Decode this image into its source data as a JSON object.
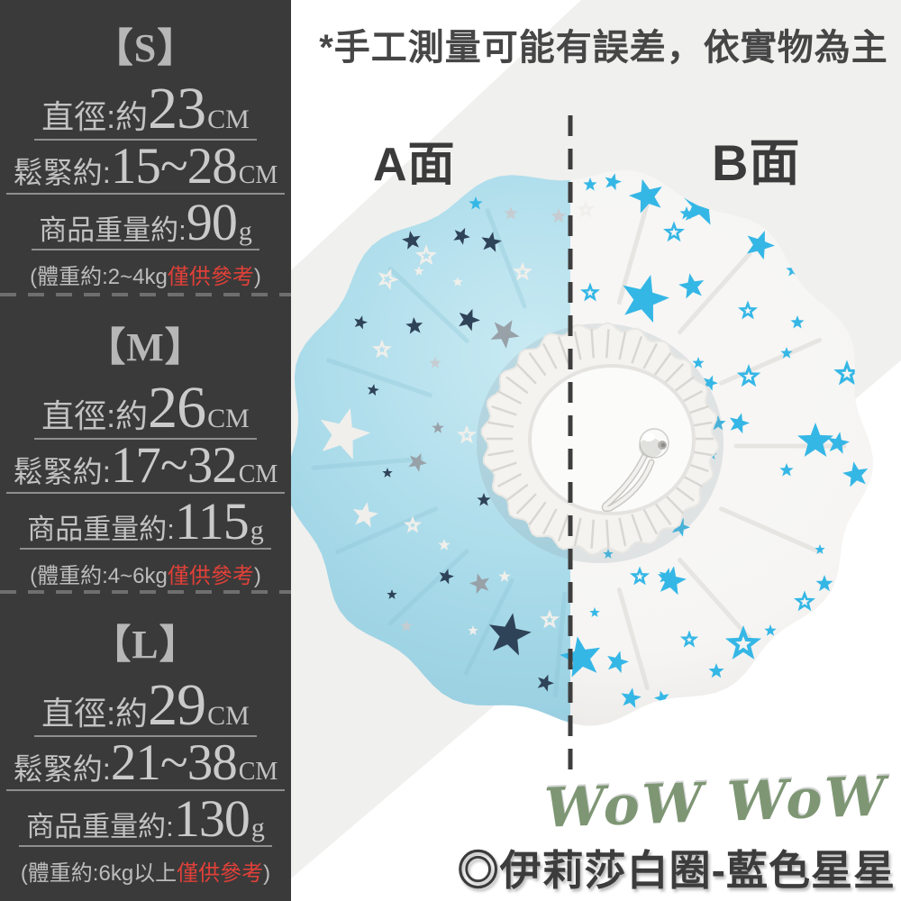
{
  "panel": {
    "sections": [
      {
        "size_label": "【S】",
        "rows": [
          {
            "label": "直徑:約",
            "value": "23",
            "unit": "CM"
          },
          {
            "label": "鬆緊約:",
            "value": "15~28",
            "unit": "CM"
          },
          {
            "label": "商品重量約:",
            "value": "90",
            "unit": "g"
          }
        ],
        "note_prefix": "(體重約:2~4kg",
        "note_red": "僅供參考",
        "note_suffix": ")"
      },
      {
        "size_label": "【M】",
        "rows": [
          {
            "label": "直徑:約",
            "value": "26",
            "unit": "CM"
          },
          {
            "label": "鬆緊約:",
            "value": "17~32",
            "unit": "CM"
          },
          {
            "label": "商品重量約:",
            "value": "115",
            "unit": "g"
          }
        ],
        "note_prefix": "(體重約:4~6kg",
        "note_red": "僅供參考",
        "note_suffix": ")"
      },
      {
        "size_label": "【L】",
        "rows": [
          {
            "label": "直徑:約",
            "value": "29",
            "unit": "CM"
          },
          {
            "label": "鬆緊約:",
            "value": "21~38",
            "unit": "CM"
          },
          {
            "label": "商品重量約:",
            "value": "130",
            "unit": "g"
          }
        ],
        "note_prefix": "(體重約:6kg以上",
        "note_red": "僅供參考",
        "note_suffix": ")"
      }
    ]
  },
  "stage": {
    "disclaimer": "*手工測量可能有誤差，依實物為主",
    "side_a_label": "A面",
    "side_b_label": "B面",
    "watermark": "WoW WoW",
    "product_name": "◎伊莉莎白圈-藍色星星"
  },
  "colors": {
    "panel_bg": "#3a3a3a",
    "panel_red": "#e04038",
    "gray_band": "#f0f0ee",
    "fabric_blue": "#a8dae9",
    "fabric_blue_light": "#c9eaf3",
    "fabric_blue_deep": "#92cbdd",
    "fabric_white": "#f6f5f3",
    "fabric_white_deep": "#e1e0dd",
    "star_cyan": "#35b7e6",
    "star_navy": "#2f4358",
    "star_gray": "#98a1a8",
    "star_silver": "#c6ccd1",
    "star_white": "#f0efeb",
    "dash_line": "#3d3d3d",
    "watermark_green": "#7e9674",
    "title_text": "#3c3c3c"
  },
  "product": {
    "stars_left": [
      [
        495,
        208,
        9,
        0,
        "wo"
      ],
      [
        567,
        237,
        8,
        0,
        "s"
      ],
      [
        620,
        240,
        9,
        0,
        "s"
      ],
      [
        650,
        233,
        7,
        0,
        "wo"
      ],
      [
        528,
        226,
        8,
        0,
        "c"
      ],
      [
        398,
        264,
        8,
        10,
        "n"
      ],
      [
        457,
        267,
        11,
        -10,
        "n"
      ],
      [
        512,
        262,
        10,
        25,
        "n"
      ],
      [
        545,
        269,
        12,
        10,
        "n"
      ],
      [
        473,
        284,
        9,
        0,
        "wo"
      ],
      [
        465,
        301,
        6,
        0,
        "w"
      ],
      [
        580,
        302,
        8,
        0,
        "wo"
      ],
      [
        430,
        310,
        9,
        20,
        "wo"
      ],
      [
        508,
        313,
        6,
        0,
        "w"
      ],
      [
        400,
        358,
        8,
        15,
        "n"
      ],
      [
        460,
        362,
        10,
        -5,
        "n"
      ],
      [
        520,
        355,
        13,
        20,
        "n"
      ],
      [
        560,
        370,
        17,
        30,
        "g"
      ],
      [
        424,
        388,
        8,
        0,
        "wo"
      ],
      [
        483,
        403,
        7,
        0,
        "s"
      ],
      [
        414,
        433,
        7,
        10,
        "n"
      ],
      [
        381,
        482,
        30,
        15,
        "w"
      ],
      [
        486,
        475,
        7,
        0,
        "g"
      ],
      [
        518,
        483,
        8,
        0,
        "wo"
      ],
      [
        463,
        513,
        11,
        25,
        "g"
      ],
      [
        430,
        525,
        6,
        0,
        "n"
      ],
      [
        537,
        555,
        8,
        0,
        "n"
      ],
      [
        405,
        572,
        15,
        10,
        "w"
      ],
      [
        458,
        583,
        7,
        0,
        "wo"
      ],
      [
        493,
        605,
        7,
        0,
        "w"
      ],
      [
        451,
        695,
        7,
        0,
        "s"
      ],
      [
        495,
        640,
        9,
        15,
        "n"
      ],
      [
        533,
        648,
        12,
        -15,
        "g"
      ],
      [
        435,
        660,
        6,
        0,
        "n"
      ],
      [
        610,
        688,
        8,
        0,
        "wo"
      ],
      [
        565,
        705,
        25,
        10,
        "n"
      ],
      [
        525,
        700,
        6,
        0,
        "w"
      ],
      [
        605,
        758,
        10,
        20,
        "n"
      ],
      [
        560,
        640,
        7,
        0,
        "w"
      ]
    ],
    "stars_right": [
      [
        655,
        205,
        8,
        0,
        "c"
      ],
      [
        680,
        202,
        10,
        15,
        "c"
      ],
      [
        718,
        218,
        20,
        -15,
        "c"
      ],
      [
        762,
        237,
        8,
        0,
        "c"
      ],
      [
        778,
        228,
        24,
        10,
        "c"
      ],
      [
        843,
        272,
        17,
        20,
        "c"
      ],
      [
        748,
        258,
        9,
        0,
        "co"
      ],
      [
        880,
        300,
        8,
        0,
        "c"
      ],
      [
        900,
        307,
        6,
        0,
        "c"
      ],
      [
        655,
        325,
        8,
        0,
        "co"
      ],
      [
        715,
        332,
        28,
        15,
        "c"
      ],
      [
        768,
        318,
        15,
        -10,
        "c"
      ],
      [
        830,
        345,
        8,
        0,
        "co"
      ],
      [
        885,
        358,
        8,
        0,
        "c"
      ],
      [
        920,
        323,
        7,
        0,
        "c"
      ],
      [
        831,
        418,
        10,
        0,
        "co"
      ],
      [
        788,
        425,
        9,
        20,
        "c"
      ],
      [
        873,
        392,
        7,
        0,
        "c"
      ],
      [
        940,
        415,
        11,
        0,
        "co"
      ],
      [
        960,
        418,
        7,
        0,
        "c"
      ],
      [
        775,
        403,
        7,
        0,
        "c"
      ],
      [
        820,
        470,
        12,
        15,
        "c"
      ],
      [
        797,
        470,
        9,
        0,
        "c"
      ],
      [
        905,
        490,
        21,
        0,
        "c"
      ],
      [
        930,
        492,
        13,
        10,
        "c"
      ],
      [
        950,
        527,
        15,
        -10,
        "c"
      ],
      [
        873,
        522,
        8,
        0,
        "c"
      ],
      [
        790,
        505,
        6,
        0,
        "c"
      ],
      [
        755,
        585,
        11,
        20,
        "c"
      ],
      [
        745,
        645,
        17,
        10,
        "c"
      ],
      [
        675,
        615,
        6,
        0,
        "c"
      ],
      [
        710,
        640,
        8,
        0,
        "co"
      ],
      [
        740,
        640,
        10,
        15,
        "c"
      ],
      [
        910,
        610,
        6,
        0,
        "c"
      ],
      [
        915,
        648,
        10,
        0,
        "c"
      ],
      [
        893,
        668,
        9,
        0,
        "co"
      ],
      [
        645,
        730,
        24,
        -10,
        "c"
      ],
      [
        685,
        735,
        13,
        15,
        "c"
      ],
      [
        765,
        710,
        7,
        0,
        "co"
      ],
      [
        825,
        715,
        15,
        0,
        "co"
      ],
      [
        700,
        775,
        12,
        10,
        "c"
      ],
      [
        735,
        775,
        9,
        -15,
        "c"
      ],
      [
        795,
        745,
        9,
        0,
        "c"
      ],
      [
        855,
        700,
        7,
        0,
        "c"
      ],
      [
        660,
        680,
        6,
        0,
        "c"
      ]
    ]
  }
}
